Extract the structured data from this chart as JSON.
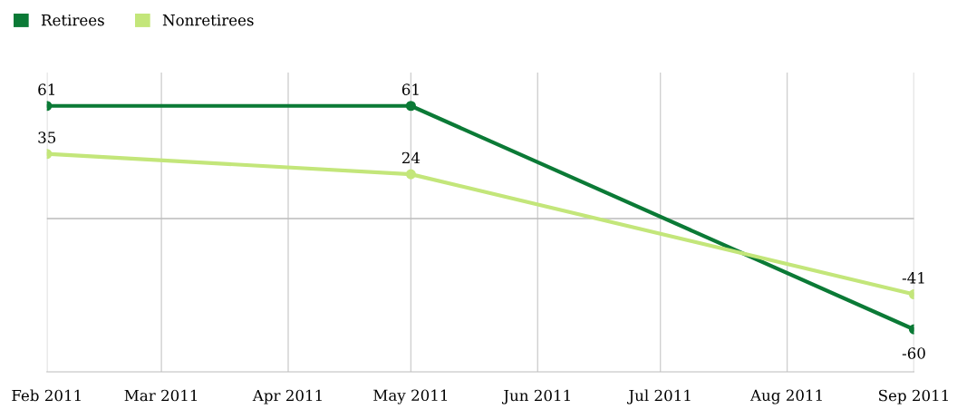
{
  "chart_data": {
    "type": "line",
    "x": [
      "2011-02",
      "2011-05",
      "2011-09"
    ],
    "series": [
      {
        "name": "Retirees",
        "color": "#0b7a36",
        "values": [
          61,
          61,
          -60
        ]
      },
      {
        "name": "Nonretirees",
        "color": "#c3e67a",
        "values": [
          35,
          24,
          -41
        ]
      }
    ],
    "xlim": [
      "2011-02",
      "2011-09"
    ],
    "xticks": [
      {
        "value": "2011-02",
        "label": "Feb 2011"
      },
      {
        "value": "2011-03",
        "label": "Mar 2011"
      },
      {
        "value": "2011-04",
        "label": "Apr 2011"
      },
      {
        "value": "2011-05",
        "label": "May 2011"
      },
      {
        "value": "2011-06",
        "label": "Jun 2011"
      },
      {
        "value": "2011-07",
        "label": "Jul 2011"
      },
      {
        "value": "2011-08",
        "label": "Aug 2011"
      },
      {
        "value": "2011-09",
        "label": "Sep 2011"
      }
    ],
    "ylim": [
      -83,
      79
    ],
    "ref_lines": [
      {
        "axis": "y",
        "value": 0,
        "label": null,
        "color": "#bbbbbb"
      }
    ],
    "grid": "x",
    "legend": "top left",
    "marker": "circle",
    "line_style": "solid",
    "data_labels": true,
    "tick_labels": "x"
  }
}
